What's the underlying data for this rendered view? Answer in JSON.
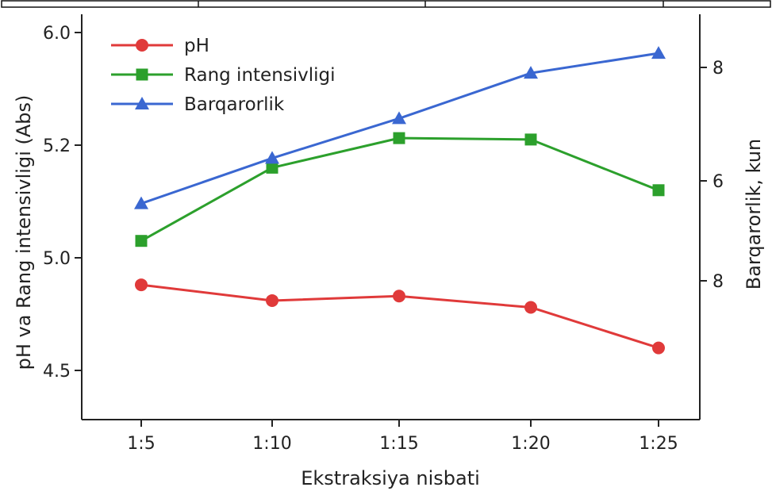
{
  "chart_data": {
    "type": "line",
    "xlabel": "Ekstraksiya nisbati",
    "ylabel_left": "pH va Rang intensivligi (Abs)",
    "ylabel_right": "Barqarorlik, kun",
    "categories": [
      "1:5",
      "1:10",
      "1:15",
      "1:20",
      "1:25"
    ],
    "left_ticks": [
      "6.0",
      "5.2",
      "5.0",
      "4.5"
    ],
    "right_ticks": [
      "8",
      "6",
      "8"
    ],
    "legend_position": "top-left",
    "grid": false,
    "series": [
      {
        "name": "pH",
        "axis": "left",
        "color": "#e03a3a",
        "marker": "circle",
        "values": [
          4.88,
          4.81,
          4.83,
          4.78,
          4.6
        ]
      },
      {
        "name": "Rang intensivligi",
        "axis": "left",
        "color": "#2ca02c",
        "marker": "square",
        "values": [
          5.03,
          5.16,
          5.25,
          5.24,
          5.12
        ]
      },
      {
        "name": "Barqarorlik",
        "axis": "right",
        "color": "#3a67d1",
        "marker": "triangle",
        "values": [
          5.6,
          6.4,
          7.1,
          7.9,
          8.25
        ]
      }
    ]
  }
}
